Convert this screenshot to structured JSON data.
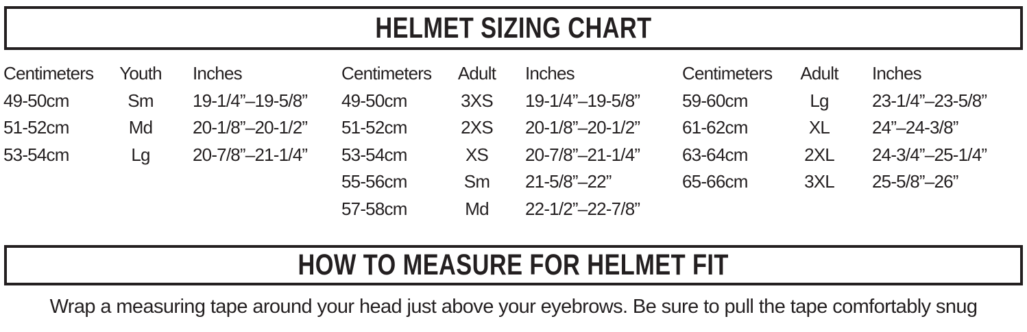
{
  "banners": {
    "sizing_title": "HELMET SIZING CHART",
    "measure_title": "HOW TO MEASURE FOR HELMET FIT"
  },
  "instructions": {
    "text": "Wrap a measuring tape around your head just above your eyebrows. Be sure to pull the tape comfortably snug"
  },
  "table": {
    "groups": [
      {
        "name": "youth",
        "headers": [
          "Centimeters",
          "Youth",
          "Inches"
        ],
        "rows": [
          [
            "49-50cm",
            "Sm",
            "19-1/4”–19-5/8”"
          ],
          [
            "51-52cm",
            "Md",
            "20-1/8”–20-1/2”"
          ],
          [
            "53-54cm",
            "Lg",
            "20-7/8”–21-1/4”"
          ]
        ]
      },
      {
        "name": "adult-small",
        "headers": [
          "Centimeters",
          "Adult",
          "Inches"
        ],
        "rows": [
          [
            "49-50cm",
            "3XS",
            "19-1/4”–19-5/8”"
          ],
          [
            "51-52cm",
            "2XS",
            "20-1/8”–20-1/2”"
          ],
          [
            "53-54cm",
            "XS",
            "20-7/8”–21-1/4”"
          ],
          [
            "55-56cm",
            "Sm",
            "21-5/8”–22”"
          ],
          [
            "57-58cm",
            "Md",
            "22-1/2”–22-7/8”"
          ]
        ]
      },
      {
        "name": "adult-large",
        "headers": [
          "Centimeters",
          "Adult",
          "Inches"
        ],
        "rows": [
          [
            "59-60cm",
            "Lg",
            "23-1/4”–23-5/8”"
          ],
          [
            "61-62cm",
            "XL",
            "24”–24-3/8”"
          ],
          [
            "63-64cm",
            "2XL",
            "24-3/4”–25-1/4”"
          ],
          [
            "65-66cm",
            "3XL",
            "25-5/8”–26”"
          ]
        ]
      }
    ]
  },
  "colors": {
    "text": "#231f20",
    "border": "#231f20",
    "background": "#ffffff"
  }
}
